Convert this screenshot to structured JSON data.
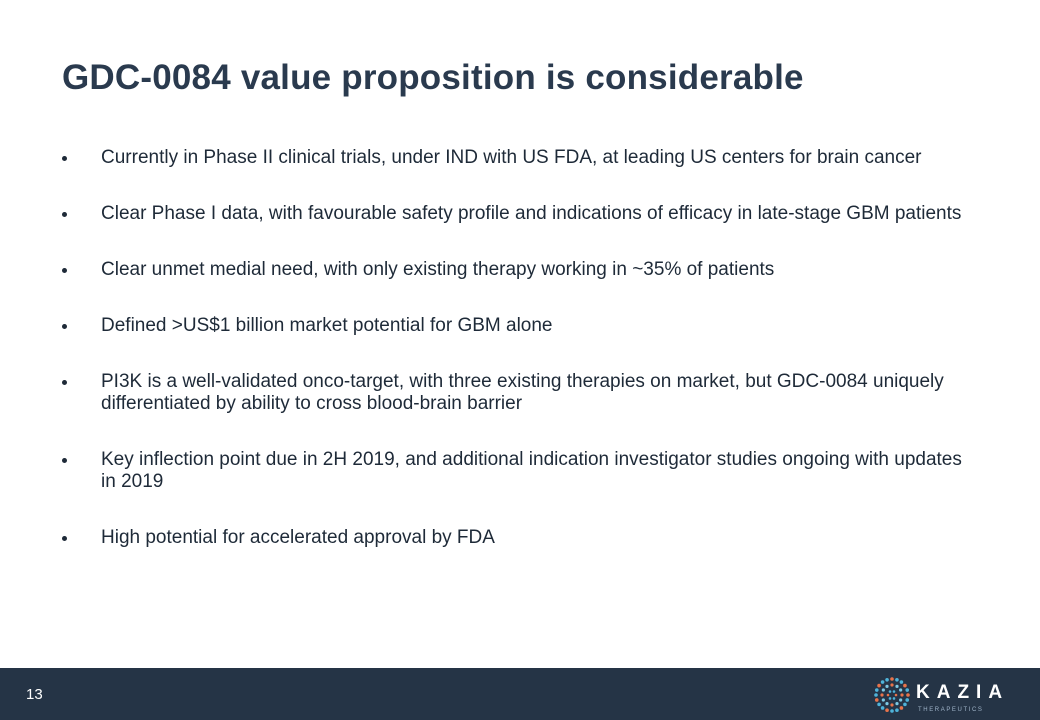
{
  "title": "GDC-0084 value proposition is considerable",
  "bullets": [
    "Currently in Phase II clinical trials, under IND with US FDA, at leading US centers for brain cancer",
    "Clear Phase I data, with favourable safety profile and indications of efficacy in late-stage GBM patients",
    "Clear unmet medial need, with only existing therapy working in ~35% of patients",
    "Defined >US$1 billion market potential for GBM alone",
    "PI3K is a well-validated onco-target, with three existing therapies on market, but GDC-0084 uniquely differentiated by ability to cross blood-brain barrier",
    "Key inflection point due in 2H 2019, and additional indication investigator studies ongoing with updates in 2019",
    "High potential for accelerated approval by FDA"
  ],
  "footer": {
    "page_number": "13",
    "logo": {
      "name": "KAZIA",
      "tagline": "THERAPEUTICS"
    }
  }
}
